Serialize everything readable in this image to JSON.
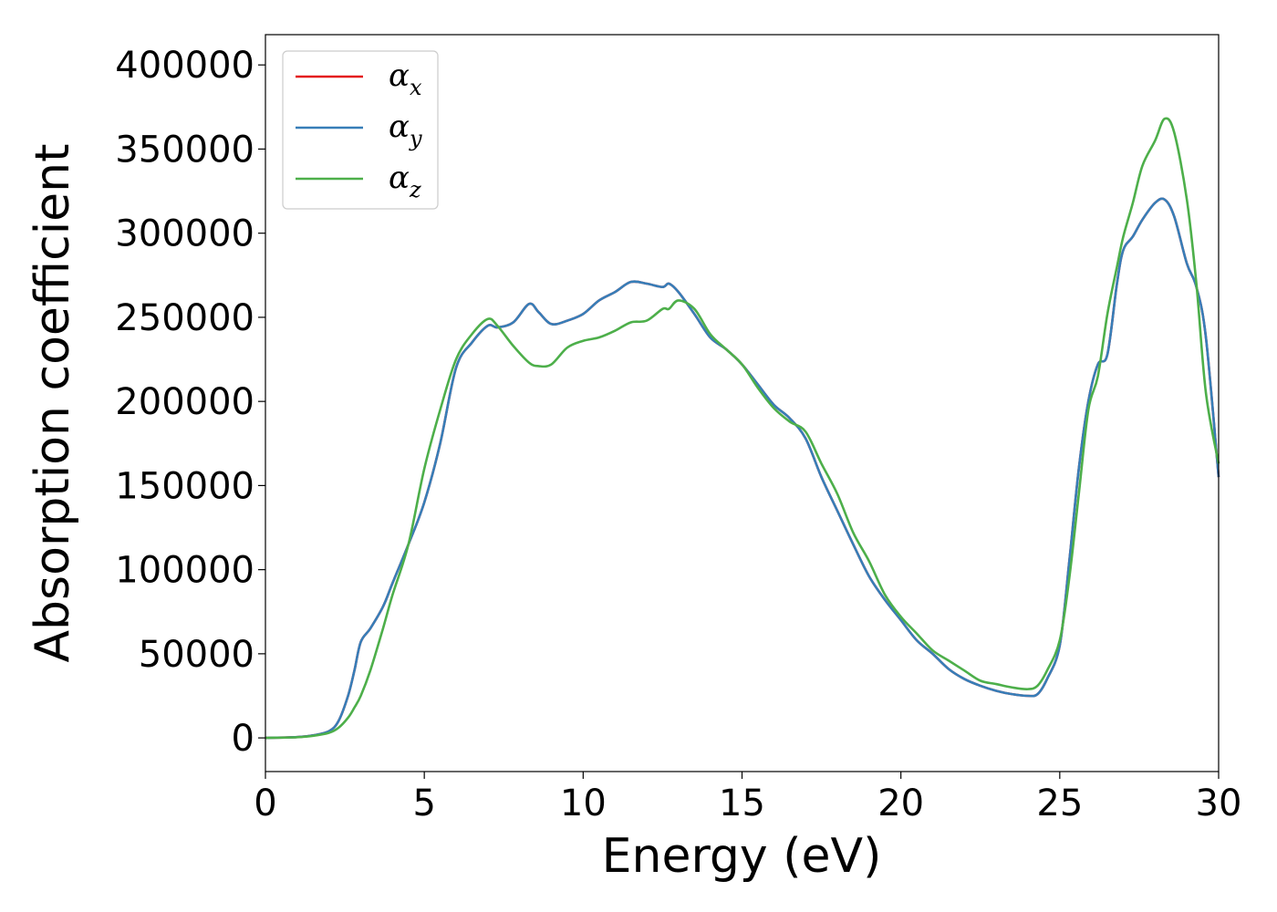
{
  "chart_data": {
    "type": "line",
    "xlabel": "Energy (eV)",
    "ylabel": "Absorption coefficient",
    "xlim": [
      0,
      30
    ],
    "ylim": [
      -20000,
      418000
    ],
    "xticks": [
      0,
      5,
      10,
      15,
      20,
      25,
      30
    ],
    "yticks": [
      0,
      50000,
      100000,
      150000,
      200000,
      250000,
      300000,
      350000,
      400000
    ],
    "grid": false,
    "legend_position": "upper-left",
    "series": [
      {
        "name": "α",
        "subscript": "x",
        "color": "#e41a1c",
        "x": [
          0,
          1,
          1.5,
          2,
          2.3,
          2.6,
          2.8,
          3.0,
          3.3,
          3.7,
          4.0,
          4.5,
          5.0,
          5.5,
          6.0,
          6.5,
          7.0,
          7.3,
          7.8,
          8.3,
          8.6,
          9.0,
          9.5,
          10.0,
          10.5,
          11.0,
          11.5,
          12.0,
          12.5,
          12.7,
          13.0,
          13.5,
          14.0,
          14.5,
          15.0,
          15.5,
          16.0,
          16.5,
          17.0,
          17.5,
          18.0,
          18.5,
          19.0,
          19.5,
          20.0,
          20.5,
          21.0,
          21.5,
          22.0,
          22.5,
          23.0,
          23.5,
          24.0,
          24.3,
          24.6,
          25.0,
          25.3,
          25.6,
          25.9,
          26.2,
          26.5,
          26.8,
          27.0,
          27.3,
          27.6,
          28.0,
          28.3,
          28.6,
          29.0,
          29.3,
          29.6,
          30.0
        ],
        "y": [
          0,
          500,
          1500,
          4000,
          10000,
          25000,
          40000,
          57000,
          65000,
          78000,
          92000,
          115000,
          140000,
          175000,
          220000,
          235000,
          245000,
          244000,
          247000,
          258000,
          253000,
          246000,
          248000,
          252000,
          260000,
          265000,
          271000,
          270000,
          268000,
          270000,
          265000,
          252000,
          238000,
          231000,
          222000,
          210000,
          198000,
          190000,
          178000,
          155000,
          135000,
          115000,
          96000,
          82000,
          70000,
          58000,
          50000,
          41000,
          35000,
          31000,
          28000,
          26000,
          25000,
          26000,
          35000,
          55000,
          105000,
          160000,
          200000,
          222000,
          228000,
          270000,
          290000,
          298000,
          308000,
          318000,
          320000,
          310000,
          282000,
          268000,
          238000,
          155000
        ]
      },
      {
        "name": "α",
        "subscript": "y",
        "color": "#377eb8",
        "x": [
          0,
          1,
          1.5,
          2,
          2.3,
          2.6,
          2.8,
          3.0,
          3.3,
          3.7,
          4.0,
          4.5,
          5.0,
          5.5,
          6.0,
          6.5,
          7.0,
          7.3,
          7.8,
          8.3,
          8.6,
          9.0,
          9.5,
          10.0,
          10.5,
          11.0,
          11.5,
          12.0,
          12.5,
          12.7,
          13.0,
          13.5,
          14.0,
          14.5,
          15.0,
          15.5,
          16.0,
          16.5,
          17.0,
          17.5,
          18.0,
          18.5,
          19.0,
          19.5,
          20.0,
          20.5,
          21.0,
          21.5,
          22.0,
          22.5,
          23.0,
          23.5,
          24.0,
          24.3,
          24.6,
          25.0,
          25.3,
          25.6,
          25.9,
          26.2,
          26.5,
          26.8,
          27.0,
          27.3,
          27.6,
          28.0,
          28.3,
          28.6,
          29.0,
          29.3,
          29.6,
          30.0
        ],
        "y": [
          0,
          500,
          1500,
          4000,
          10000,
          25000,
          40000,
          57000,
          65000,
          78000,
          92000,
          115000,
          140000,
          175000,
          220000,
          235000,
          245000,
          244000,
          247000,
          258000,
          253000,
          246000,
          248000,
          252000,
          260000,
          265000,
          271000,
          270000,
          268000,
          270000,
          265000,
          252000,
          238000,
          231000,
          222000,
          210000,
          198000,
          190000,
          178000,
          155000,
          135000,
          115000,
          96000,
          82000,
          70000,
          58000,
          50000,
          41000,
          35000,
          31000,
          28000,
          26000,
          25000,
          26000,
          35000,
          55000,
          105000,
          160000,
          200000,
          222000,
          228000,
          270000,
          290000,
          298000,
          308000,
          318000,
          320000,
          310000,
          282000,
          268000,
          238000,
          155000
        ]
      },
      {
        "name": "α",
        "subscript": "z",
        "color": "#4daf4a",
        "x": [
          0,
          1,
          1.5,
          2,
          2.3,
          2.6,
          2.8,
          3.0,
          3.3,
          3.7,
          4.0,
          4.5,
          5.0,
          5.5,
          6.0,
          6.5,
          7.0,
          7.3,
          7.8,
          8.3,
          8.6,
          9.0,
          9.5,
          10.0,
          10.5,
          11.0,
          11.5,
          12.0,
          12.5,
          12.7,
          13.0,
          13.5,
          14.0,
          14.5,
          15.0,
          15.5,
          16.0,
          16.5,
          17.0,
          17.5,
          18.0,
          18.5,
          19.0,
          19.5,
          20.0,
          20.5,
          21.0,
          21.5,
          22.0,
          22.5,
          23.0,
          23.5,
          24.0,
          24.3,
          24.6,
          25.0,
          25.3,
          25.6,
          25.9,
          26.2,
          26.5,
          26.8,
          27.0,
          27.3,
          27.6,
          28.0,
          28.3,
          28.6,
          29.0,
          29.3,
          29.6,
          30.0
        ],
        "y": [
          0,
          400,
          1200,
          3000,
          6000,
          12000,
          18000,
          25000,
          40000,
          65000,
          85000,
          115000,
          160000,
          195000,
          225000,
          240000,
          249000,
          245000,
          233000,
          223000,
          221000,
          222000,
          232000,
          236000,
          238000,
          242000,
          247000,
          248000,
          255000,
          255000,
          260000,
          255000,
          240000,
          231000,
          222000,
          208000,
          196000,
          188000,
          182000,
          163000,
          145000,
          122000,
          105000,
          85000,
          72000,
          62000,
          52000,
          46000,
          40000,
          34000,
          32000,
          30000,
          29000,
          31000,
          40000,
          58000,
          95000,
          145000,
          195000,
          215000,
          252000,
          280000,
          298000,
          318000,
          340000,
          355000,
          368000,
          360000,
          320000,
          270000,
          205000,
          163000
        ]
      }
    ]
  }
}
